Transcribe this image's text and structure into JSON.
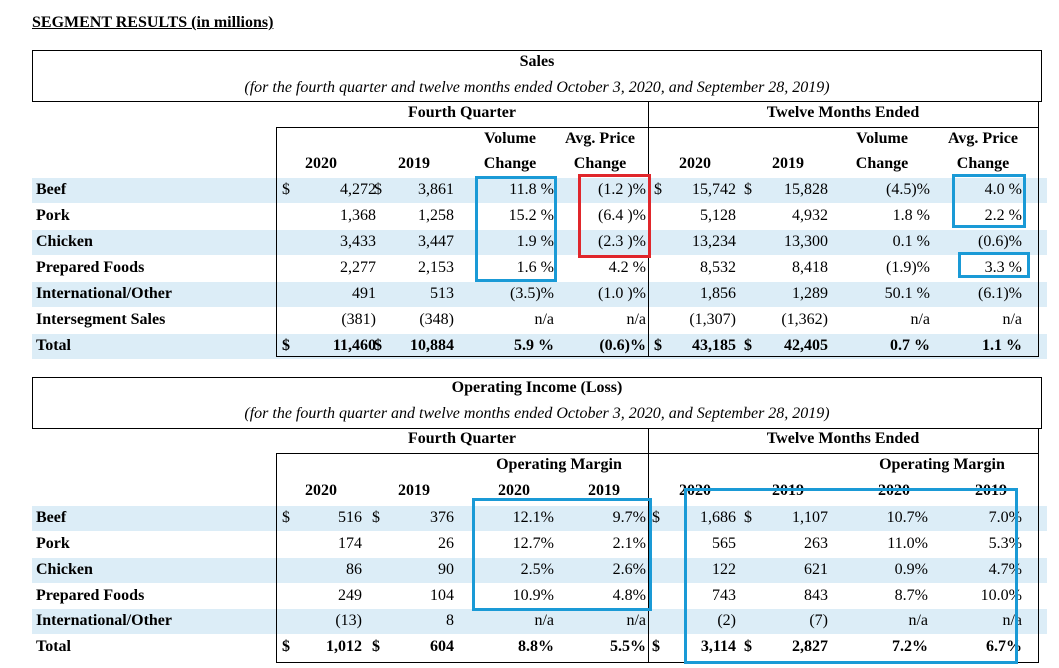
{
  "heading": "SEGMENT RESULTS (in millions)",
  "colors": {
    "row_band": "#dcedf7",
    "highlight_blue": "#1a9ad6",
    "highlight_red": "#e0262b"
  },
  "sales": {
    "title": "Sales",
    "subtitle": "(for the fourth quarter and twelve months ended October 3, 2020, and September 28, 2019)",
    "group_fq": "Fourth Quarter",
    "group_tm": "Twelve Months Ended",
    "hdr_volume": "Volume",
    "hdr_avgprice": "Avg. Price",
    "hdr_change": "Change",
    "yr2020": "2020",
    "yr2019": "2019",
    "rows": [
      {
        "label": "Beef",
        "fq2020": "4,272",
        "fq2019": "3,861",
        "fqvol": "11.8 %",
        "fqavg": "(1.2 )%",
        "tm2020": "15,742",
        "tm2019": "15,828",
        "tmvol": "(4.5)%",
        "tmavg": "4.0 %"
      },
      {
        "label": "Pork",
        "fq2020": "1,368",
        "fq2019": "1,258",
        "fqvol": "15.2 %",
        "fqavg": "(6.4 )%",
        "tm2020": "5,128",
        "tm2019": "4,932",
        "tmvol": "1.8 %",
        "tmavg": "2.2 %"
      },
      {
        "label": "Chicken",
        "fq2020": "3,433",
        "fq2019": "3,447",
        "fqvol": "1.9 %",
        "fqavg": "(2.3 )%",
        "tm2020": "13,234",
        "tm2019": "13,300",
        "tmvol": "0.1 %",
        "tmavg": "(0.6)%"
      },
      {
        "label": "Prepared Foods",
        "fq2020": "2,277",
        "fq2019": "2,153",
        "fqvol": "1.6 %",
        "fqavg": "4.2 %",
        "tm2020": "8,532",
        "tm2019": "8,418",
        "tmvol": "(1.9)%",
        "tmavg": "3.3 %"
      },
      {
        "label": "International/Other",
        "fq2020": "491",
        "fq2019": "513",
        "fqvol": "(3.5)%",
        "fqavg": "(1.0 )%",
        "tm2020": "1,856",
        "tm2019": "1,289",
        "tmvol": "50.1 %",
        "tmavg": "(6.1)%"
      },
      {
        "label": "Intersegment Sales",
        "fq2020": "(381)",
        "fq2019": "(348)",
        "fqvol": "n/a",
        "fqavg": "n/a",
        "tm2020": "(1,307)",
        "tm2019": "(1,362)",
        "tmvol": "n/a",
        "tmavg": "n/a"
      },
      {
        "label": "Total",
        "fq2020": "11,460",
        "fq2019": "10,884",
        "fqvol": "5.9 %",
        "fqavg": "(0.6)%",
        "tm2020": "43,185",
        "tm2019": "42,405",
        "tmvol": "0.7 %",
        "tmavg": "1.1 %"
      }
    ]
  },
  "opinc": {
    "title": "Operating Income (Loss)",
    "subtitle": "(for the fourth quarter and twelve months ended October 3, 2020, and September 28, 2019)",
    "group_fq": "Fourth Quarter",
    "group_tm": "Twelve Months Ended",
    "hdr_margin": "Operating Margin",
    "yr2020": "2020",
    "yr2019": "2019",
    "rows": [
      {
        "label": "Beef",
        "fq2020": "516",
        "fq2019": "376",
        "fqm2020": "12.1%",
        "fqm2019": "9.7%",
        "tm2020": "1,686",
        "tm2019": "1,107",
        "tmm2020": "10.7%",
        "tmm2019": "7.0%"
      },
      {
        "label": "Pork",
        "fq2020": "174",
        "fq2019": "26",
        "fqm2020": "12.7%",
        "fqm2019": "2.1%",
        "tm2020": "565",
        "tm2019": "263",
        "tmm2020": "11.0%",
        "tmm2019": "5.3%"
      },
      {
        "label": "Chicken",
        "fq2020": "86",
        "fq2019": "90",
        "fqm2020": "2.5%",
        "fqm2019": "2.6%",
        "tm2020": "122",
        "tm2019": "621",
        "tmm2020": "0.9%",
        "tmm2019": "4.7%"
      },
      {
        "label": "Prepared Foods",
        "fq2020": "249",
        "fq2019": "104",
        "fqm2020": "10.9%",
        "fqm2019": "4.8%",
        "tm2020": "743",
        "tm2019": "843",
        "tmm2020": "8.7%",
        "tmm2019": "10.0%"
      },
      {
        "label": "International/Other",
        "fq2020": "(13)",
        "fq2019": "8",
        "fqm2020": "n/a",
        "fqm2019": "n/a",
        "tm2020": "(2)",
        "tm2019": "(7)",
        "tmm2020": "n/a",
        "tmm2019": "n/a"
      },
      {
        "label": "Total",
        "fq2020": "1,012",
        "fq2019": "604",
        "fqm2020": "8.8%",
        "fqm2019": "5.5%",
        "tm2020": "3,114",
        "tm2019": "2,827",
        "tmm2020": "7.2%",
        "tmm2019": "6.7%"
      }
    ]
  }
}
